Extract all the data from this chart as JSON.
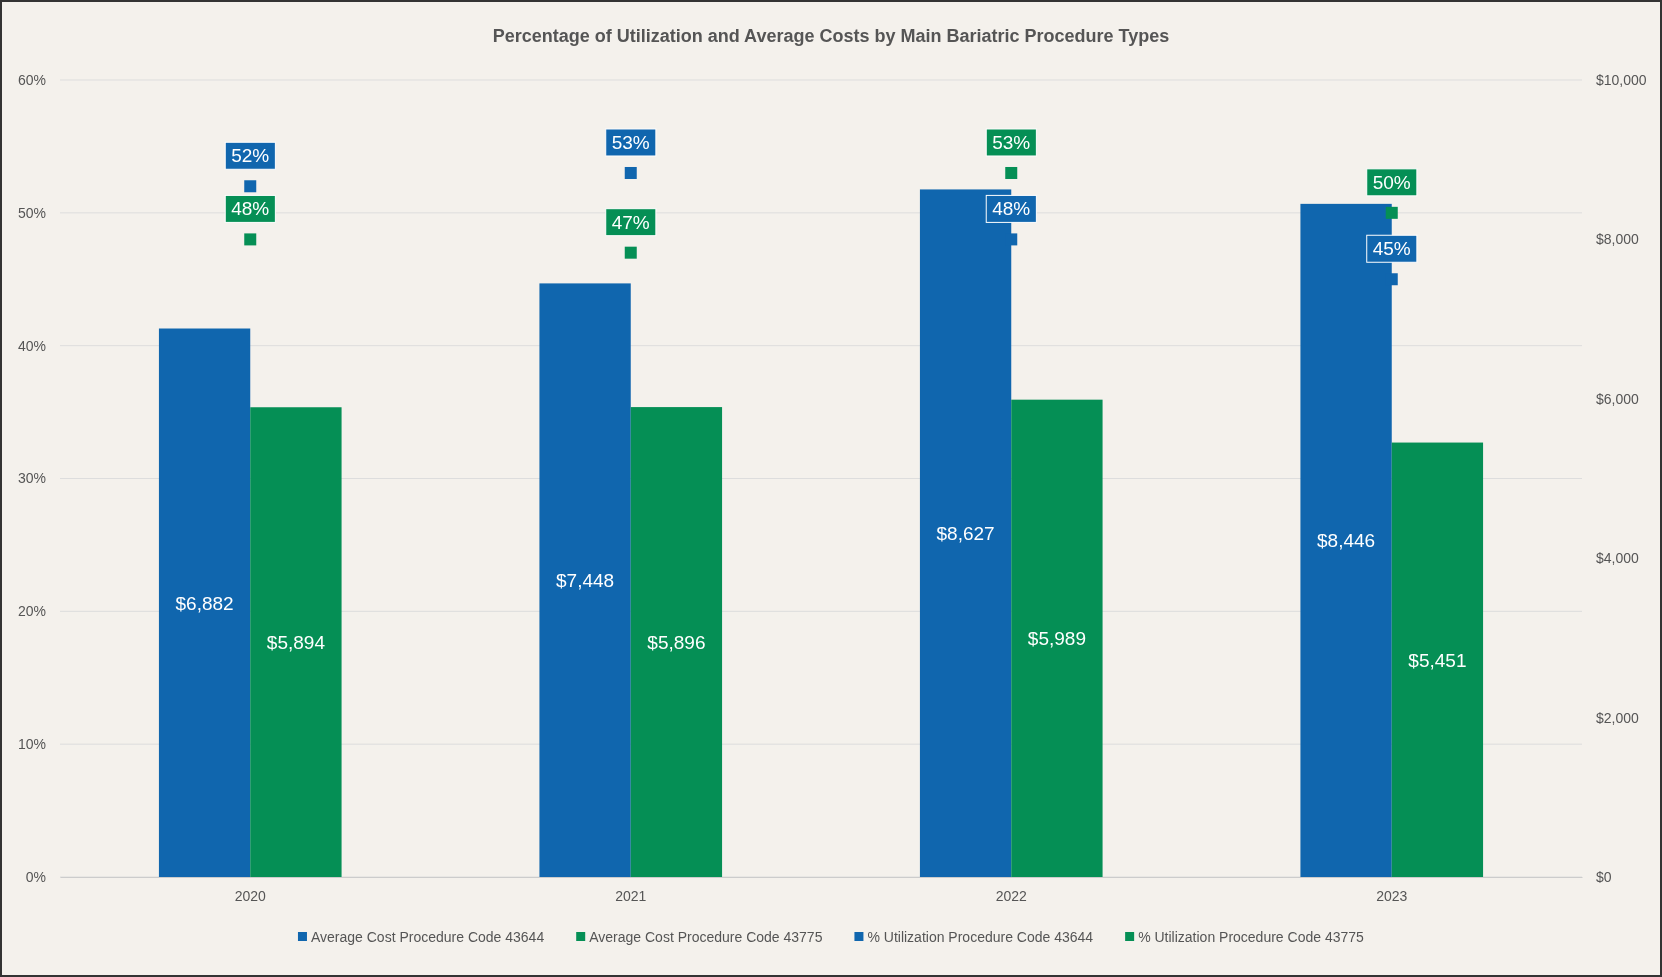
{
  "chart_data": {
    "type": "bar",
    "title": "Percentage of Utilization and Average Costs by Main Bariatric Procedure Types",
    "categories": [
      "2020",
      "2021",
      "2022",
      "2023"
    ],
    "series": [
      {
        "name": "Average Cost Procedure Code 43644",
        "color": "#1066ae",
        "axis": "y2",
        "values": [
          6882,
          7448,
          8627,
          8446
        ],
        "value_labels": [
          "$6,882",
          "$7,448",
          "$8,627",
          "$8,446"
        ]
      },
      {
        "name": "Average Cost Procedure Code 43775",
        "color": "#058f55",
        "axis": "y2",
        "values": [
          5894,
          5896,
          5989,
          5451
        ],
        "value_labels": [
          "$5,894",
          "$5,896",
          "$5,989",
          "$5,451"
        ]
      },
      {
        "name": "% Utilization Procedure Code 43644",
        "type": "scatter",
        "color": "#1066ae",
        "values": [
          52,
          53,
          48,
          45
        ],
        "value_labels": [
          "52%",
          "53%",
          "48%",
          "45%"
        ]
      },
      {
        "name": "% Utilization Procedure Code 43775",
        "type": "scatter",
        "color": "#058f55",
        "values": [
          48,
          47,
          53,
          50
        ],
        "value_labels": [
          "48%",
          "47%",
          "53%",
          "50%"
        ]
      }
    ],
    "ylim": [
      0,
      60
    ],
    "yticks": [
      {
        "value": 0,
        "label": "0%"
      },
      {
        "value": 10,
        "label": "10%"
      },
      {
        "value": 20,
        "label": "20%"
      },
      {
        "value": 30,
        "label": "30%"
      },
      {
        "value": 40,
        "label": "40%"
      },
      {
        "value": 50,
        "label": "50%"
      },
      {
        "value": 60,
        "label": "60%"
      }
    ],
    "y2lim": [
      0,
      10000
    ],
    "y2ticks": [
      {
        "value": 0,
        "label": "$0"
      },
      {
        "value": 2000,
        "label": "$2,000"
      },
      {
        "value": 4000,
        "label": "$4,000"
      },
      {
        "value": 6000,
        "label": "$6,000"
      },
      {
        "value": 8000,
        "label": "$8,000"
      },
      {
        "value": 10000,
        "label": "$10,000"
      }
    ],
    "grid": "y",
    "legend": "bottom",
    "marker": "square"
  }
}
